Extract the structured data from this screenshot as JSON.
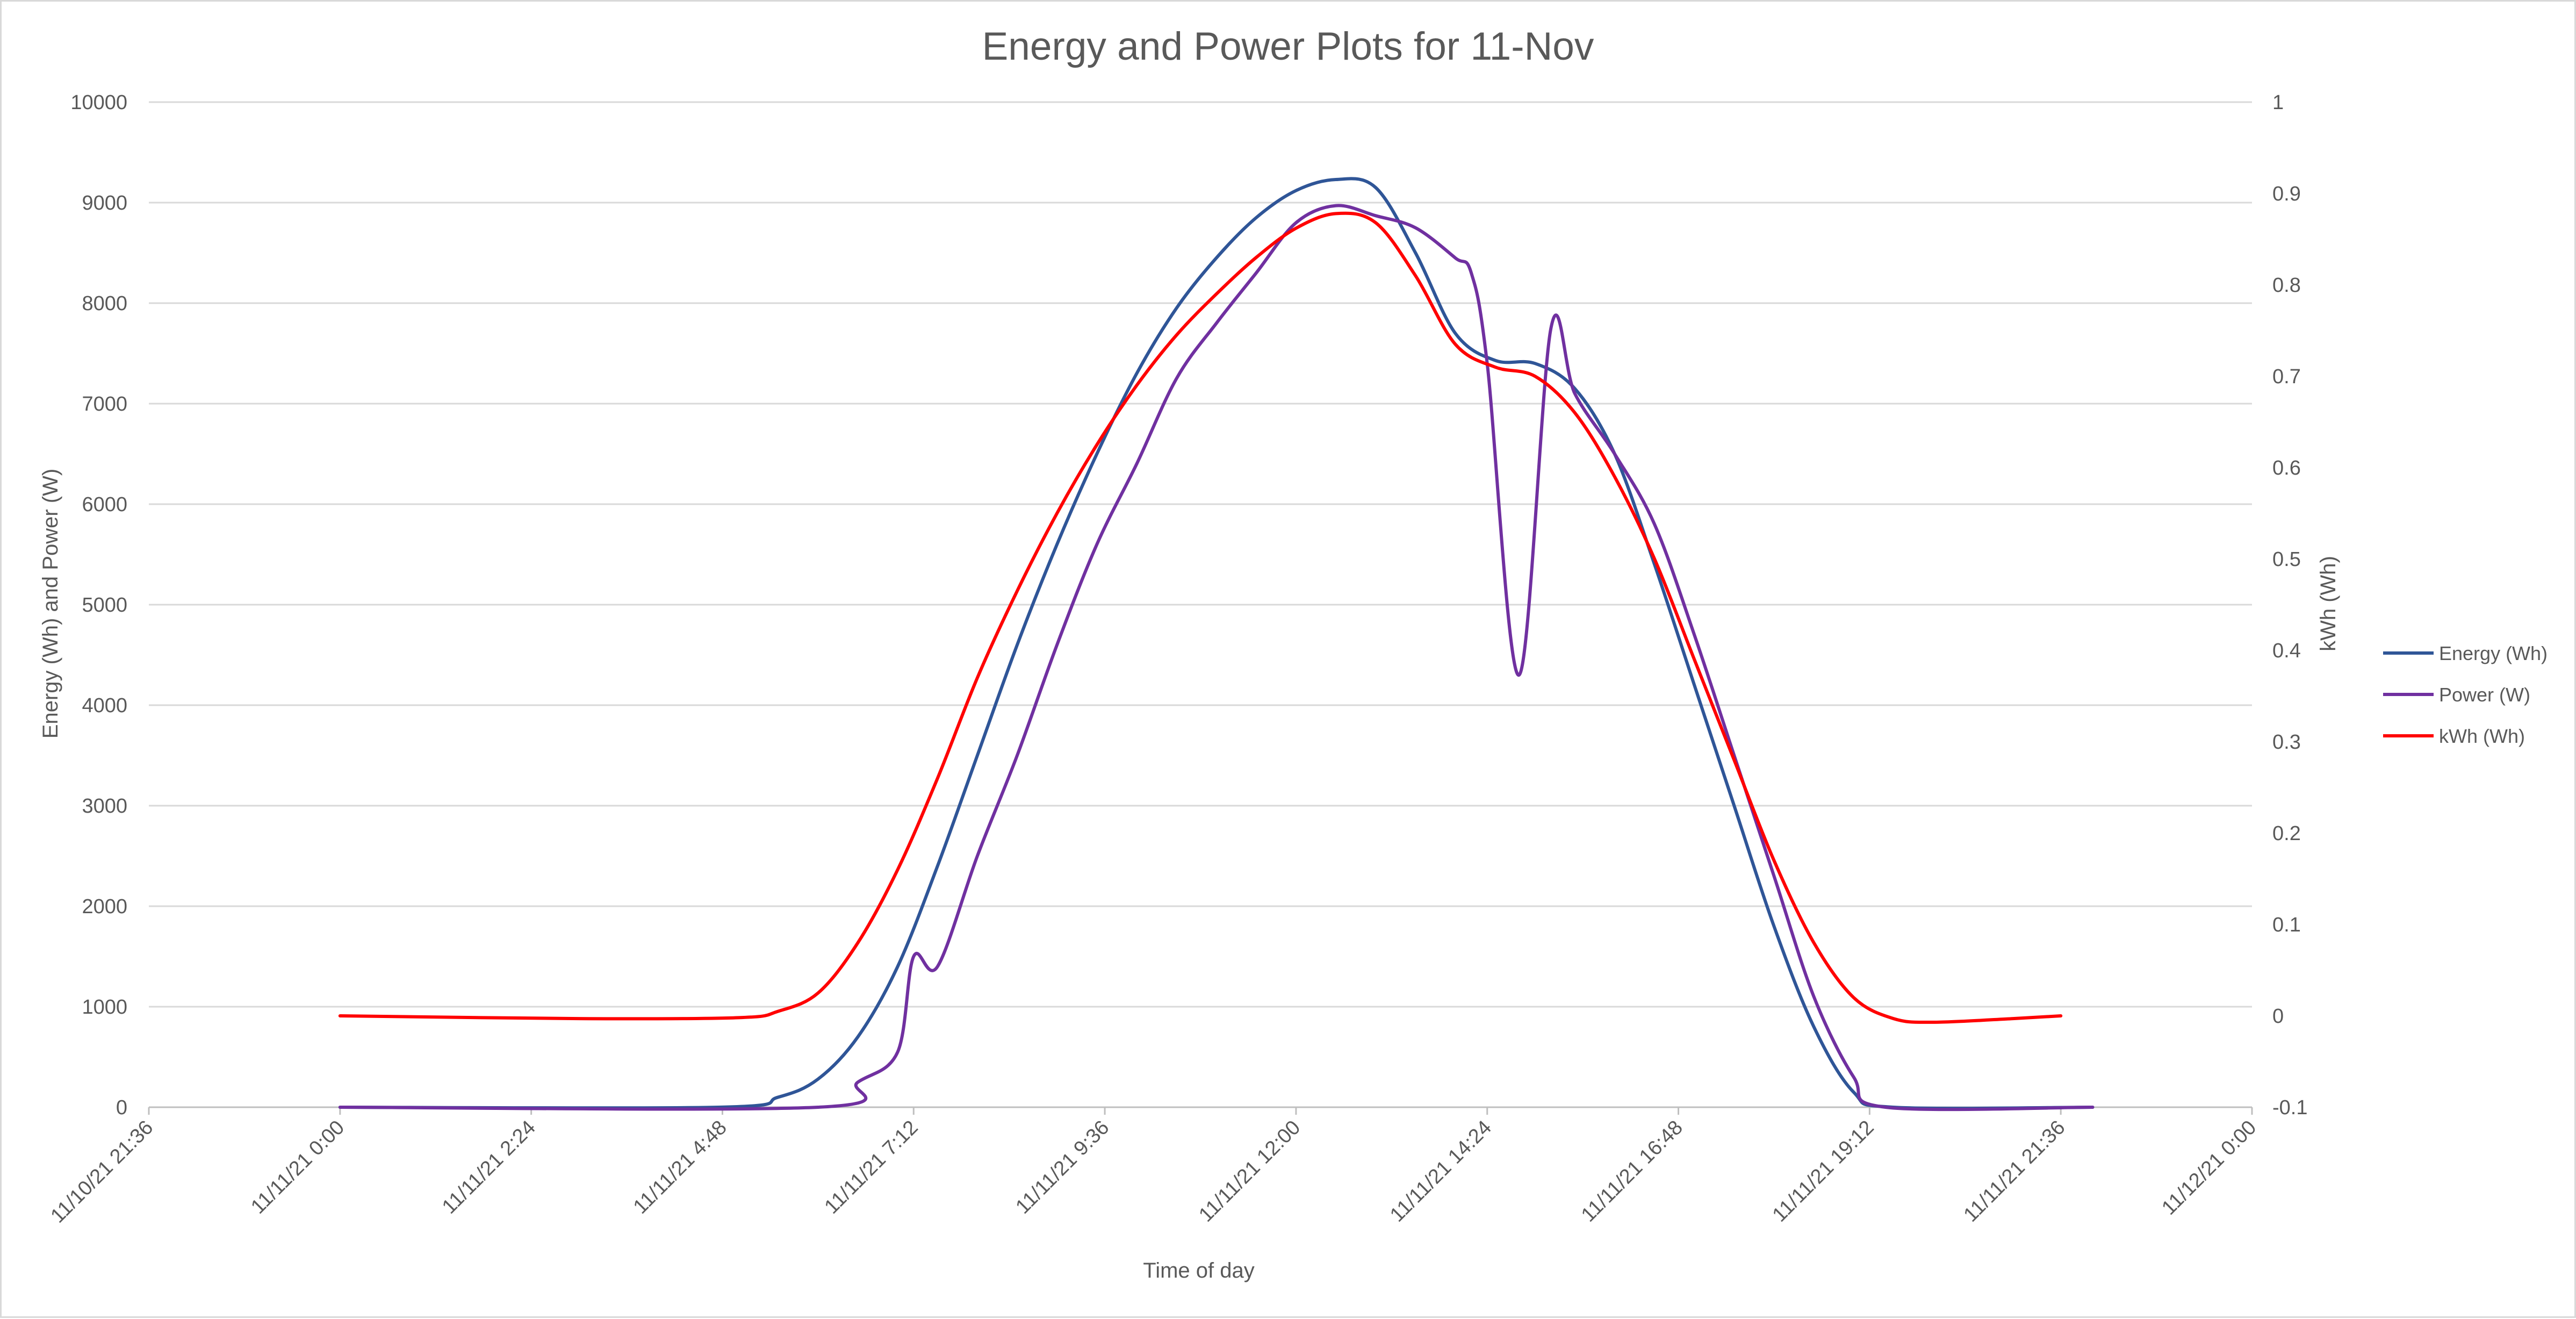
{
  "chart_data": {
    "type": "line",
    "title": "Energy and Power Plots for 11-Nov",
    "xlabel": "Time of day",
    "ylabel": "Energy (Wh) and Power (W)",
    "y2label": "kWh (Wh)",
    "xlim": [
      "11/10/21 21:36",
      "11/12/21 0:00"
    ],
    "ylim": [
      0,
      10000
    ],
    "y2lim": [
      -0.1,
      1
    ],
    "x_ticks": [
      "11/10/21 21:36",
      "11/11/21 0:00",
      "11/11/21 2:24",
      "11/11/21 4:48",
      "11/11/21 7:12",
      "11/11/21 9:36",
      "11/11/21 12:00",
      "11/11/21 14:24",
      "11/11/21 16:48",
      "11/11/21 19:12",
      "11/11/21 21:36",
      "11/12/21 0:00"
    ],
    "y_ticks": [
      "0",
      "1000",
      "2000",
      "3000",
      "4000",
      "5000",
      "6000",
      "7000",
      "8000",
      "9000",
      "10000"
    ],
    "y2_ticks": [
      "-0.1",
      "0",
      "0.1",
      "0.2",
      "0.3",
      "0.4",
      "0.5",
      "0.6",
      "0.7",
      "0.8",
      "0.9",
      "1"
    ],
    "grid": true,
    "legend_position": "right",
    "series": [
      {
        "name": "Energy (Wh)",
        "color": "#2f5597",
        "axis": "left",
        "points": [
          [
            "11/11/21 0:00",
            0
          ],
          [
            "11/11/21 4:45",
            0
          ],
          [
            "11/11/21 5:30",
            100
          ],
          [
            "11/11/21 6:00",
            280
          ],
          [
            "11/11/21 6:30",
            700
          ],
          [
            "11/11/21 7:00",
            1400
          ],
          [
            "11/11/21 7:30",
            2400
          ],
          [
            "11/11/21 8:00",
            3500
          ],
          [
            "11/11/21 8:30",
            4600
          ],
          [
            "11/11/21 9:00",
            5600
          ],
          [
            "11/11/21 9:30",
            6500
          ],
          [
            "11/11/21 10:00",
            7300
          ],
          [
            "11/11/21 10:30",
            7950
          ],
          [
            "11/11/21 11:00",
            8450
          ],
          [
            "11/11/21 11:30",
            8850
          ],
          [
            "11/11/21 12:00",
            9120
          ],
          [
            "11/11/21 12:30",
            9230
          ],
          [
            "11/11/21 13:00",
            9150
          ],
          [
            "11/11/21 13:30",
            8500
          ],
          [
            "11/11/21 14:00",
            7700
          ],
          [
            "11/11/21 14:30",
            7430
          ],
          [
            "11/11/21 15:00",
            7400
          ],
          [
            "11/11/21 15:30",
            7150
          ],
          [
            "11/11/21 16:00",
            6500
          ],
          [
            "11/11/21 16:30",
            5400
          ],
          [
            "11/11/21 17:00",
            4200
          ],
          [
            "11/11/21 17:30",
            3000
          ],
          [
            "11/11/21 18:00",
            1800
          ],
          [
            "11/11/21 18:30",
            800
          ],
          [
            "11/11/21 19:00",
            150
          ],
          [
            "11/11/21 19:30",
            0
          ],
          [
            "11/11/21 22:00",
            0
          ]
        ]
      },
      {
        "name": "Power (W)",
        "color": "#7030a0",
        "axis": "left",
        "points": [
          [
            "11/11/21 0:00",
            0
          ],
          [
            "11/11/21 6:00",
            0
          ],
          [
            "11/11/21 6:30",
            250
          ],
          [
            "11/11/21 7:00",
            550
          ],
          [
            "11/11/21 7:12",
            1500
          ],
          [
            "11/11/21 7:30",
            1400
          ],
          [
            "11/11/21 8:00",
            2500
          ],
          [
            "11/11/21 8:30",
            3500
          ],
          [
            "11/11/21 9:00",
            4600
          ],
          [
            "11/11/21 9:30",
            5600
          ],
          [
            "11/11/21 10:00",
            6400
          ],
          [
            "11/11/21 10:30",
            7250
          ],
          [
            "11/11/21 11:00",
            7800
          ],
          [
            "11/11/21 11:30",
            8300
          ],
          [
            "11/11/21 12:00",
            8800
          ],
          [
            "11/11/21 12:30",
            8970
          ],
          [
            "11/11/21 13:00",
            8870
          ],
          [
            "11/11/21 13:30",
            8750
          ],
          [
            "11/11/21 14:00",
            8450
          ],
          [
            "11/11/21 14:12",
            8300
          ],
          [
            "11/11/21 14:24",
            7400
          ],
          [
            "11/11/21 14:48",
            4300
          ],
          [
            "11/11/21 15:12",
            7750
          ],
          [
            "11/11/21 15:30",
            7100
          ],
          [
            "11/11/21 16:00",
            6500
          ],
          [
            "11/11/21 16:30",
            5800
          ],
          [
            "11/11/21 17:00",
            4700
          ],
          [
            "11/11/21 17:30",
            3500
          ],
          [
            "11/11/21 18:00",
            2300
          ],
          [
            "11/11/21 18:30",
            1100
          ],
          [
            "11/11/21 19:00",
            300
          ],
          [
            "11/11/21 19:24",
            0
          ],
          [
            "11/11/21 22:00",
            0
          ]
        ]
      },
      {
        "name": "kWh (Wh)",
        "color": "#ff0000",
        "axis": "right",
        "points": [
          [
            "11/11/21 0:00",
            0
          ],
          [
            "11/11/21 3:00",
            -0.003
          ],
          [
            "11/11/21 5:00",
            -0.002
          ],
          [
            "11/11/21 5:30",
            0.005
          ],
          [
            "11/11/21 6:00",
            0.025
          ],
          [
            "11/11/21 6:30",
            0.08
          ],
          [
            "11/11/21 7:00",
            0.16
          ],
          [
            "11/11/21 7:30",
            0.26
          ],
          [
            "11/11/21 8:00",
            0.37
          ],
          [
            "11/11/21 8:30",
            0.465
          ],
          [
            "11/11/21 9:00",
            0.55
          ],
          [
            "11/11/21 9:30",
            0.625
          ],
          [
            "11/11/21 10:00",
            0.69
          ],
          [
            "11/11/21 10:30",
            0.745
          ],
          [
            "11/11/21 11:00",
            0.79
          ],
          [
            "11/11/21 11:30",
            0.83
          ],
          [
            "11/11/21 12:00",
            0.862
          ],
          [
            "11/11/21 12:30",
            0.878
          ],
          [
            "11/11/21 13:00",
            0.868
          ],
          [
            "11/11/21 13:30",
            0.81
          ],
          [
            "11/11/21 14:00",
            0.735
          ],
          [
            "11/11/21 14:30",
            0.71
          ],
          [
            "11/11/21 15:00",
            0.7
          ],
          [
            "11/11/21 15:30",
            0.66
          ],
          [
            "11/11/21 16:00",
            0.59
          ],
          [
            "11/11/21 16:30",
            0.5
          ],
          [
            "11/11/21 17:00",
            0.39
          ],
          [
            "11/11/21 17:30",
            0.28
          ],
          [
            "11/11/21 18:00",
            0.17
          ],
          [
            "11/11/21 18:30",
            0.08
          ],
          [
            "11/11/21 19:00",
            0.02
          ],
          [
            "11/11/21 19:30",
            -0.003
          ],
          [
            "11/11/21 20:00",
            -0.007
          ],
          [
            "11/11/21 21:00",
            -0.003
          ],
          [
            "11/11/21 21:36",
            0
          ]
        ]
      }
    ]
  }
}
